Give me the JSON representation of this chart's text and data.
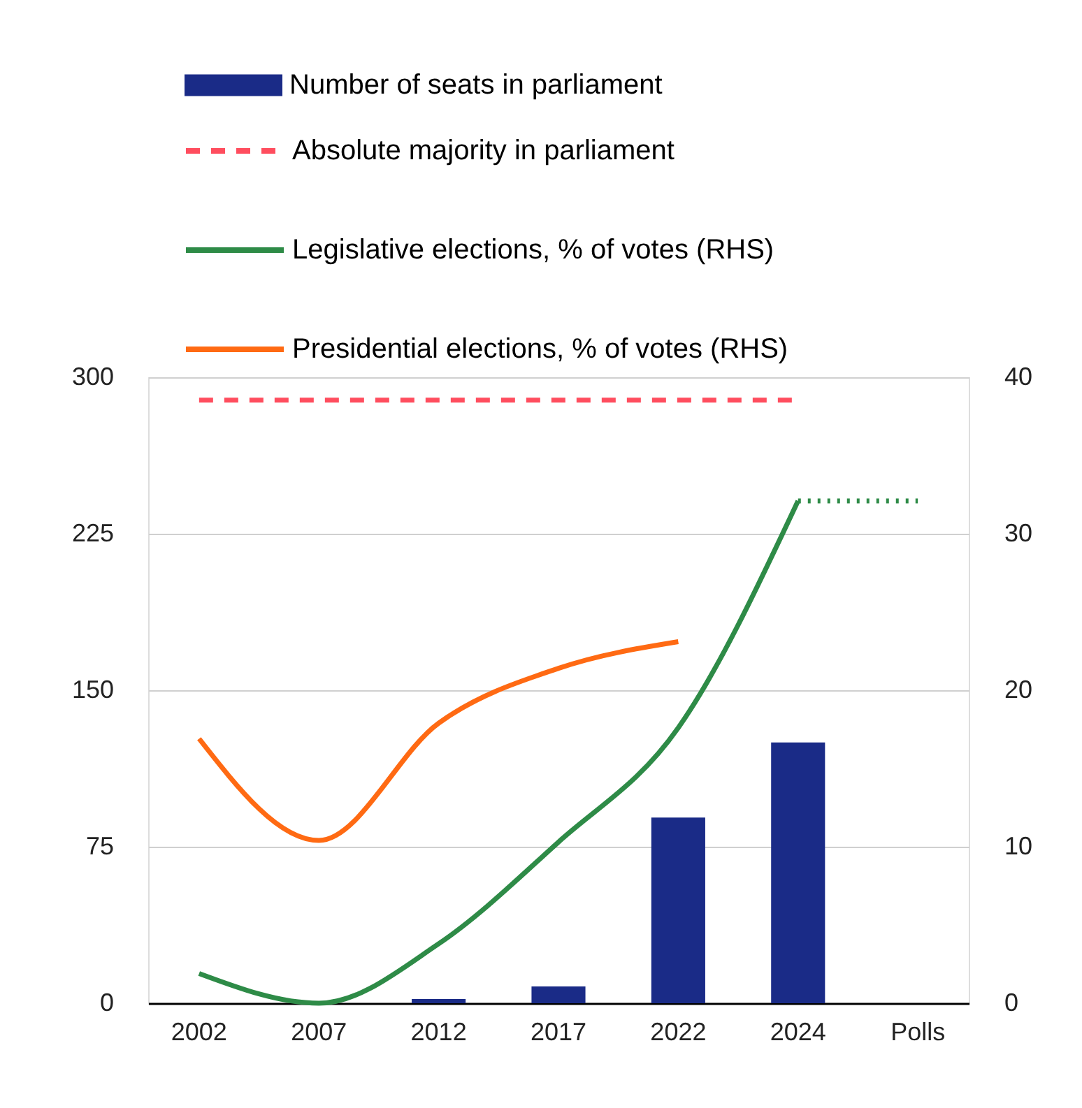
{
  "chart_data": {
    "type": "bar",
    "categories": [
      "2002",
      "2007",
      "2012",
      "2017",
      "2022",
      "2024",
      "Polls"
    ],
    "series": [
      {
        "name": "Number of seats in parliament",
        "color": "#1a2b87",
        "values": [
          0,
          0,
          2,
          8,
          89,
          125,
          null
        ]
      },
      {
        "name": "Absolute majority in parliament",
        "type": "line",
        "color": "#ff4d5e",
        "line_style": "dashed",
        "values": [
          289,
          289,
          289,
          289,
          289,
          289,
          null
        ]
      },
      {
        "name": "Legislative elections, % of votes (RHS)",
        "type": "line",
        "color": "#2e8b47",
        "axis": "y2",
        "line_style": "solid",
        "values": [
          1.9,
          0,
          3.8,
          10.3,
          17.6,
          32.1,
          null
        ]
      },
      {
        "name": "Presidential elections, % of votes (RHS)",
        "type": "line",
        "color": "#ff6a13",
        "axis": "y2",
        "line_style": "solid",
        "values": [
          16.9,
          10.4,
          17.9,
          21.4,
          23.1,
          null,
          null
        ]
      },
      {
        "type": "line",
        "color": "#2e8b47",
        "axis": "y2",
        "line_style": "dotted",
        "values": [
          null,
          null,
          null,
          null,
          null,
          32.1,
          32.1
        ]
      }
    ],
    "ylim": [
      0,
      300
    ],
    "yticks": [
      0,
      75,
      150,
      225,
      300
    ],
    "y2lim": [
      0,
      40
    ],
    "y2ticks": [
      0,
      10,
      20,
      30,
      40
    ],
    "grid": "y",
    "legend": "top"
  }
}
